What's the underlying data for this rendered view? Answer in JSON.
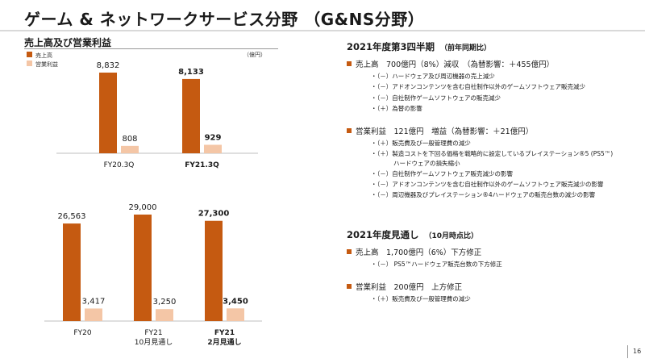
{
  "title": "ゲーム & ネットワークサービス分野 （G&NS分野）",
  "page_number": "16",
  "colors": {
    "sales": "#c55a11",
    "op_income": "#f4c6a6",
    "bullet": "#c55a11"
  },
  "chart_data": {
    "heading": "売上高及び営業利益",
    "unit": "（億円）",
    "legend": [
      {
        "label": "売上高",
        "color": "#c55a11"
      },
      {
        "label": "営業利益",
        "color": "#f4c6a6"
      }
    ],
    "charts": [
      {
        "type": "bar",
        "categories": [
          {
            "lines": [
              "FY20.3Q"
            ],
            "bold": false
          },
          {
            "lines": [
              "FY21.3Q"
            ],
            "bold": true
          }
        ],
        "series": [
          {
            "name": "売上高",
            "values": [
              8832,
              8133
            ],
            "labels": [
              "8,832",
              "8,133"
            ]
          },
          {
            "name": "営業利益",
            "values": [
              808,
              929
            ],
            "labels": [
              "808",
              "929"
            ]
          }
        ],
        "ylim": [
          0,
          9500
        ]
      },
      {
        "type": "bar",
        "categories": [
          {
            "lines": [
              "FY20"
            ],
            "bold": false
          },
          {
            "lines": [
              "FY21",
              "10月見通し"
            ],
            "bold": false
          },
          {
            "lines": [
              "FY21",
              "2月見通し"
            ],
            "bold": true
          }
        ],
        "series": [
          {
            "name": "売上高",
            "values": [
              26563,
              29000,
              27300
            ],
            "labels": [
              "26,563",
              "29,000",
              "27,300"
            ]
          },
          {
            "name": "営業利益",
            "values": [
              3417,
              3250,
              3450
            ],
            "labels": [
              "3,417",
              "3,250",
              "3,450"
            ]
          }
        ],
        "ylim": [
          0,
          31000
        ]
      }
    ]
  },
  "sections": [
    {
      "title": "2021年度第3四半期",
      "note": "（前年同期比）",
      "bullets": [
        {
          "text": "売上高　700億円（8%）減収　（為替影響：＋455億円）",
          "subs": [
            {
              "text": "・（－）ハードウェア及び周辺機器の売上減少"
            },
            {
              "text": "・（－）アドオンコンテンツを含む自社制作以外のゲームソフトウェア販売減少"
            },
            {
              "text": "・（－）自社制作ゲームソフトウェアの販売減少"
            },
            {
              "text": "・（＋）為替の影響"
            }
          ]
        },
        {
          "text": "営業利益　121億円　増益（為替影響：＋21億円）",
          "subs": [
            {
              "text": "・（＋）販売費及び一般管理費の減少"
            },
            {
              "text": "・（＋）製造コストを下回る価格を戦略的に設定しているプレイステーション®5 (PS5™)"
            },
            {
              "text": "ハードウェアの損失縮小",
              "cont": true
            },
            {
              "text": "・（－）自社制作ゲームソフトウェア販売減少の影響"
            },
            {
              "text": "・（－）アドオンコンテンツを含む自社制作以外のゲームソフトウェア販売減少の影響"
            },
            {
              "text": "・（－）周辺機器及びプレイステーション®4ハードウェアの販売台数の減少の影響"
            }
          ]
        }
      ]
    },
    {
      "title": "2021年度見通し",
      "note": "（10月時点比）",
      "bullets": [
        {
          "text": "売上高　1,700億円（6%）下方修正",
          "subs": [
            {
              "text": "・（－） PS5™ハードウェア販売台数の下方修正"
            }
          ]
        },
        {
          "text": "営業利益　200億円　上方修正",
          "subs": [
            {
              "text": "・（＋）販売費及び一般管理費の減少"
            }
          ]
        }
      ]
    }
  ]
}
